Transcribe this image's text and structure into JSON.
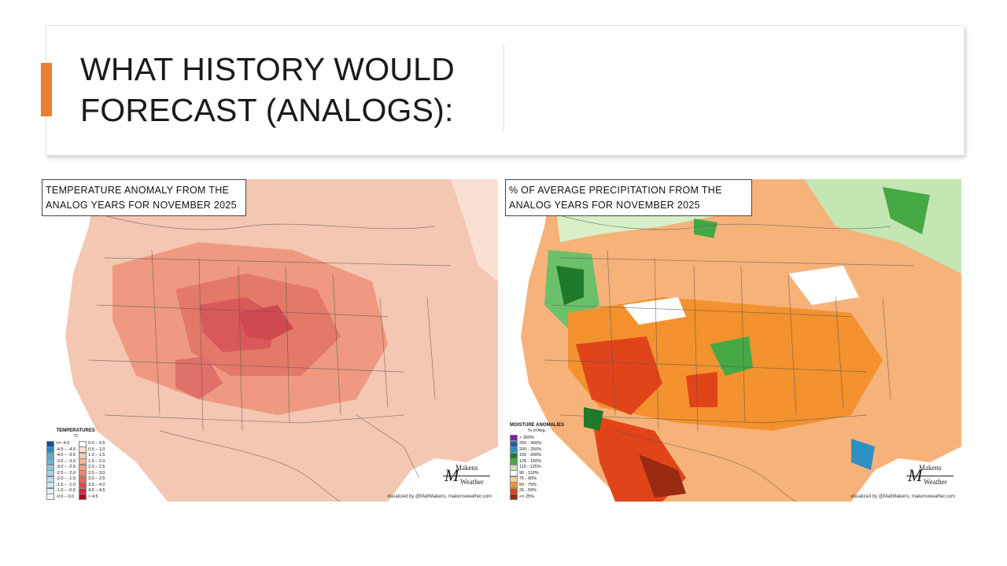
{
  "slide": {
    "title": "WHAT HISTORY WOULD FORECAST (ANALOGS):",
    "accent_color": "#ed7d31"
  },
  "maps": {
    "temperature": {
      "caption_line1": "TEMPERATURE ANOMALY FROM THE",
      "caption_line2": "ANALOG YEARS FOR NOVEMBER 2025",
      "legend_title": "TEMPERATURES",
      "legend_unit": "°C",
      "legend_cold": [
        {
          "label": "<= -4.5",
          "color": "#08589e"
        },
        {
          "label": "-4.5 – -4.0",
          "color": "#2b8cbe"
        },
        {
          "label": "-4.0 – -3.5",
          "color": "#4eb3d3"
        },
        {
          "label": "-3.5 – -3.0",
          "color": "#6bb6d6"
        },
        {
          "label": "-3.0 – -2.5",
          "color": "#8ec5e0"
        },
        {
          "label": "-2.5 – -2.0",
          "color": "#a6d2e8"
        },
        {
          "label": "-2.0 – -1.5",
          "color": "#bcdcec"
        },
        {
          "label": "-1.5 – -1.0",
          "color": "#d1e7f2"
        },
        {
          "label": "-1.0 – -0.5",
          "color": "#e4f0f7"
        },
        {
          "label": "-0.5 – 0.0",
          "color": "#f5f9fc"
        }
      ],
      "legend_warm": [
        {
          "label": "0.0 – 0.5",
          "color": "#fdf5f2"
        },
        {
          "label": "0.5 – 1.0",
          "color": "#fbe0d4"
        },
        {
          "label": "1.0 – 1.5",
          "color": "#f8cbb6"
        },
        {
          "label": "1.5 – 2.0",
          "color": "#f5b59a"
        },
        {
          "label": "2.0 – 2.5",
          "color": "#f09f82"
        },
        {
          "label": "2.5 – 3.0",
          "color": "#ea876d"
        },
        {
          "label": "3.0 – 3.5",
          "color": "#e16b5b"
        },
        {
          "label": "3.5 – 4.0",
          "color": "#d84a4a"
        },
        {
          "label": "4.0 – 4.5",
          "color": "#cc2a3a"
        },
        {
          "label": "> 4.5",
          "color": "#b3001e"
        }
      ],
      "credit": "visualized by @MattMakens, makensweather.com",
      "logo_top": "Makens",
      "logo_bottom": "Weather"
    },
    "precipitation": {
      "caption_line1": "% OF AVERAGE PRECIPITATION FROM THE",
      "caption_line2": "ANALOG YEARS FOR NOVEMBER 2025",
      "legend_title": "MOISTURE ANOMALIES",
      "legend_unit": "% of Avg.",
      "legend_items": [
        {
          "label": "> 300%",
          "color": "#7a1fa2"
        },
        {
          "label": "250 - 300%",
          "color": "#1f5fa8"
        },
        {
          "label": "200 - 250%",
          "color": "#2e8fc4"
        },
        {
          "label": "150 - 200%",
          "color": "#1e7a2a"
        },
        {
          "label": "125 - 150%",
          "color": "#45a845"
        },
        {
          "label": "110 - 125%",
          "color": "#c3e6b3"
        },
        {
          "label": "90 - 110%",
          "color": "#ffffff"
        },
        {
          "label": "75 - 90%",
          "color": "#f8cf9a"
        },
        {
          "label": "50 - 75%",
          "color": "#f3922e"
        },
        {
          "label": "25 - 50%",
          "color": "#e2441a"
        },
        {
          "label": "<= 25%",
          "color": "#9a2a12"
        }
      ],
      "credit": "visualized by @MattMakens, makensweather.com",
      "logo_top": "Makens",
      "logo_bottom": "Weather"
    }
  }
}
